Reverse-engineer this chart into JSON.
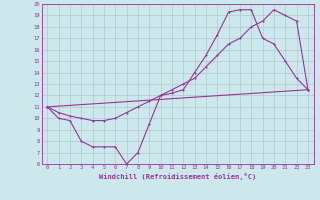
{
  "xlabel": "Windchill (Refroidissement éolien,°C)",
  "background_color": "#cce8ec",
  "line_color": "#993399",
  "grid_color": "#aacccc",
  "xlim": [
    -0.5,
    23.5
  ],
  "ylim": [
    6,
    20
  ],
  "xticks": [
    0,
    1,
    2,
    3,
    4,
    5,
    6,
    7,
    8,
    9,
    10,
    11,
    12,
    13,
    14,
    15,
    16,
    17,
    18,
    19,
    20,
    21,
    22,
    23
  ],
  "yticks": [
    6,
    7,
    8,
    9,
    10,
    11,
    12,
    13,
    14,
    15,
    16,
    17,
    18,
    19,
    20
  ],
  "line1_x": [
    0,
    1,
    2,
    3,
    4,
    5,
    6,
    7,
    8,
    9,
    10,
    11,
    12,
    13,
    14,
    15,
    16,
    17,
    18,
    19,
    20,
    21,
    22,
    23
  ],
  "line1_y": [
    11,
    10,
    9.8,
    8,
    7.5,
    7.5,
    7.5,
    6,
    7,
    9.5,
    12,
    12.2,
    12.5,
    14,
    15.5,
    17.3,
    19.3,
    19.5,
    19.5,
    17,
    16.5,
    15,
    13.5,
    12.5
  ],
  "line2_x": [
    0,
    1,
    2,
    3,
    4,
    5,
    6,
    7,
    8,
    9,
    10,
    11,
    12,
    13,
    14,
    15,
    16,
    17,
    18,
    19,
    20,
    21,
    22,
    23
  ],
  "line2_y": [
    11,
    10.5,
    10.2,
    10,
    9.8,
    9.8,
    10,
    10.5,
    11,
    11.5,
    12,
    12.5,
    13,
    13.5,
    14.5,
    15.5,
    16.5,
    17,
    18,
    18.5,
    19.5,
    19,
    18.5,
    12.5
  ],
  "line3_x": [
    0,
    23
  ],
  "line3_y": [
    11,
    12.5
  ]
}
